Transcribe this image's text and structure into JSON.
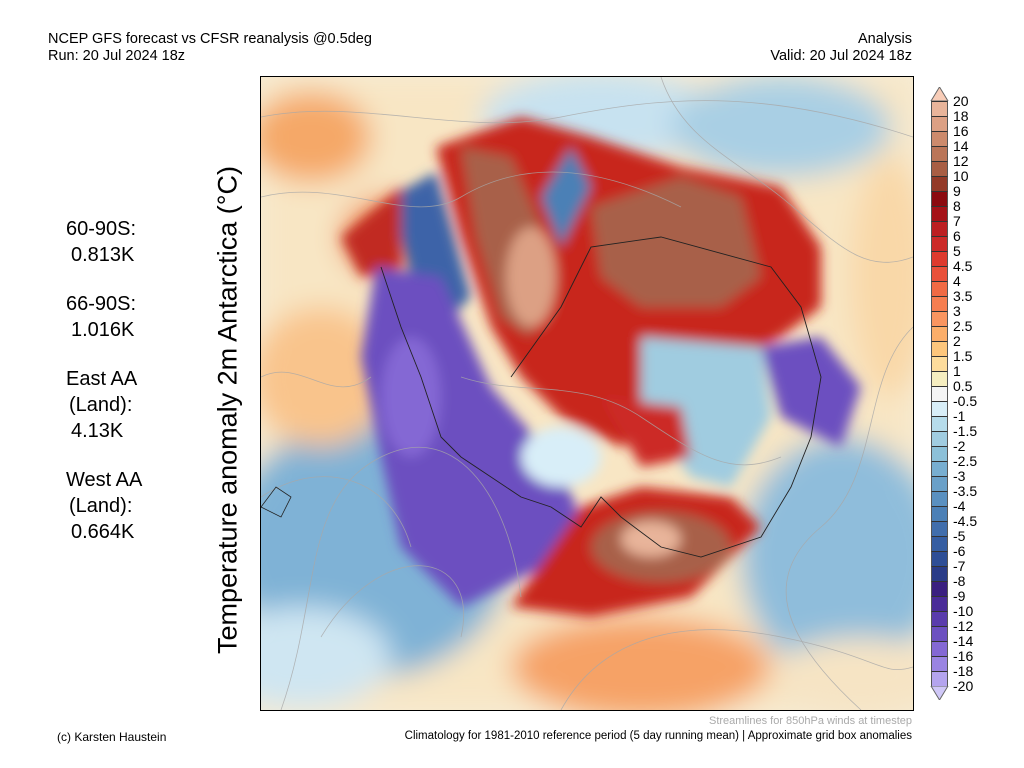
{
  "header": {
    "title": "NCEP GFS forecast vs CFSR reanalysis @0.5deg",
    "run": "Run: 20 Jul 2024 18z",
    "mode": "Analysis",
    "valid": "Valid: 20 Jul 2024 18z"
  },
  "vertical_title": "Temperature anomaly 2m Antarctica (°C)",
  "stats": [
    {
      "label": "60-90S:",
      "value": "0.813K"
    },
    {
      "label": "66-90S:",
      "value": "1.016K"
    },
    {
      "label": "East AA",
      "label2": "(Land):",
      "value": "4.13K"
    },
    {
      "label": "West AA",
      "label2": "(Land):",
      "value": "0.664K"
    }
  ],
  "colorbar": {
    "labels": [
      "20",
      "18",
      "16",
      "14",
      "12",
      "10",
      "9",
      "8",
      "7",
      "6",
      "5",
      "4.5",
      "4",
      "3.5",
      "3",
      "2.5",
      "2",
      "1.5",
      "1",
      "0.5",
      "-0.5",
      "-1",
      "-1.5",
      "-2",
      "-2.5",
      "-3",
      "-3.5",
      "-4",
      "-4.5",
      "-5",
      "-6",
      "-7",
      "-8",
      "-9",
      "-10",
      "-12",
      "-14",
      "-16",
      "-18",
      "-20"
    ],
    "top_color": "#f8cdb8",
    "bottom_color": "#d0c8f8",
    "colors": [
      "#e8b49a",
      "#dca084",
      "#cc8a6c",
      "#ba7558",
      "#a85e44",
      "#933a28",
      "#8b0a10",
      "#a51218",
      "#bc1f22",
      "#cc2a28",
      "#dd3a2e",
      "#e9503a",
      "#f06a44",
      "#f67e50",
      "#f99560",
      "#fbae6a",
      "#fdc67c",
      "#fddc9c",
      "#f6eec0",
      "#f4f4f4",
      "#d8eef8",
      "#b6dceb",
      "#a0cce0",
      "#8cc0d8",
      "#78aed0",
      "#6aa0c8",
      "#5a90c0",
      "#4c80b6",
      "#416eac",
      "#365ea2",
      "#2e4e96",
      "#2a3c88",
      "#3a1f80",
      "#4a2c98",
      "#5a3cac",
      "#6c50c0",
      "#8468d4",
      "#9a84e2",
      "#b4a4ee"
    ]
  },
  "footer": {
    "credit": "(c) Karsten Haustein",
    "streamlines": "Streamlines for 850hPa winds at timestep",
    "climatology": "Climatology for 1981-2010 reference period (5 day running mean) | Approximate grid box anomalies"
  }
}
